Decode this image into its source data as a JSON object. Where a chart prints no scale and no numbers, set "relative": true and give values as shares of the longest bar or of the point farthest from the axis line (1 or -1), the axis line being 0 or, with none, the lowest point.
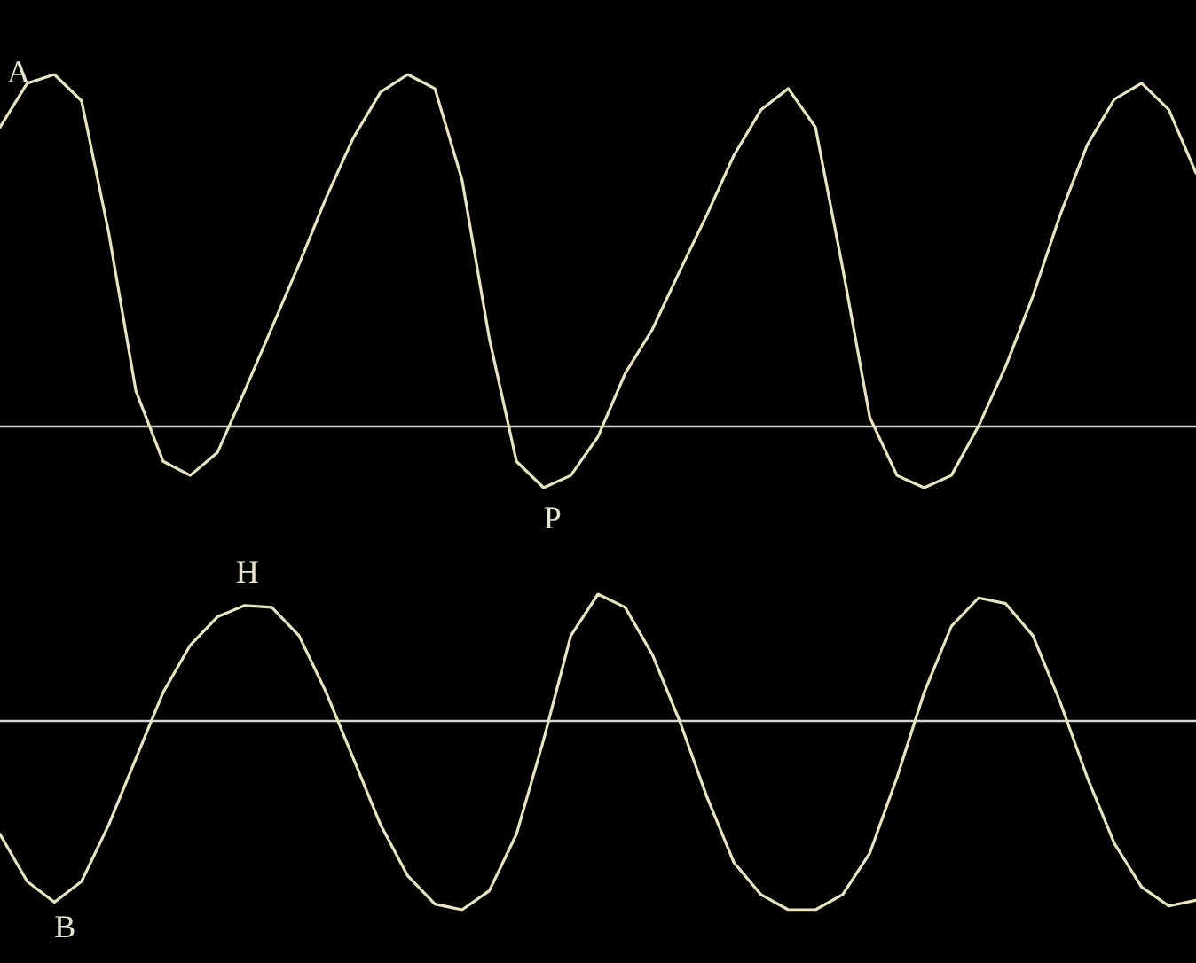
{
  "chart_data": [
    {
      "type": "line",
      "relative": true,
      "marker": "none",
      "line_style": "solid",
      "tick_labels": false,
      "categories": [
        null,
        null,
        null,
        null,
        null,
        null,
        null,
        null,
        null,
        null,
        null,
        null,
        null,
        null,
        null,
        null,
        null,
        null,
        null,
        null,
        null,
        null,
        null,
        null,
        null,
        null,
        null,
        null,
        null,
        null,
        null,
        null,
        null,
        null,
        null,
        null,
        null,
        null,
        null,
        null,
        null,
        null,
        null,
        null,
        null
      ],
      "series": [
        {
          "color": "#e8e4c0",
          "values": [
            0.85,
            0.975,
            1.0,
            0.925,
            0.55,
            0.1,
            -0.1,
            -0.14,
            -0.075,
            0.1,
            0.28,
            0.46,
            0.65,
            0.82,
            0.95,
            1.0,
            0.96,
            0.7,
            0.25,
            -0.1,
            -0.175,
            -0.14,
            -0.03,
            0.15,
            0.275,
            0.44,
            0.6,
            0.77,
            0.9,
            0.96,
            0.85,
            0.45,
            0.025,
            -0.14,
            -0.175,
            -0.14,
            0,
            0.17,
            0.37,
            0.6,
            0.8,
            0.93,
            0.975,
            0.9,
            0.72
          ]
        }
      ],
      "annotations": [
        "A",
        "P"
      ]
    },
    {
      "type": "line",
      "relative": true,
      "marker": "none",
      "line_style": "solid",
      "tick_labels": false,
      "categories": [
        null,
        null,
        null,
        null,
        null,
        null,
        null,
        null,
        null,
        null,
        null,
        null,
        null,
        null,
        null,
        null,
        null,
        null,
        null,
        null,
        null,
        null,
        null,
        null,
        null,
        null,
        null,
        null,
        null,
        null,
        null,
        null,
        null,
        null,
        null,
        null,
        null,
        null,
        null,
        null,
        null,
        null,
        null,
        null,
        null
      ],
      "series": [
        {
          "color": "#e8e4c0",
          "values": [
            -0.6,
            -0.85,
            -0.96,
            -0.85,
            -0.55,
            -0.2,
            0.15,
            0.4,
            0.55,
            0.61,
            0.6,
            0.45,
            0.15,
            -0.2,
            -0.55,
            -0.82,
            -0.97,
            -1.0,
            -0.9,
            -0.6,
            -0.1,
            0.45,
            0.67,
            0.6,
            0.35,
            0,
            -0.4,
            -0.75,
            -0.92,
            -1.0,
            -1.0,
            -0.92,
            -0.7,
            -0.3,
            0.15,
            0.5,
            0.65,
            0.62,
            0.45,
            0.1,
            -0.3,
            -0.65,
            -0.88,
            -0.98,
            -0.95
          ]
        }
      ],
      "annotations": [
        "H",
        "B"
      ]
    }
  ]
}
